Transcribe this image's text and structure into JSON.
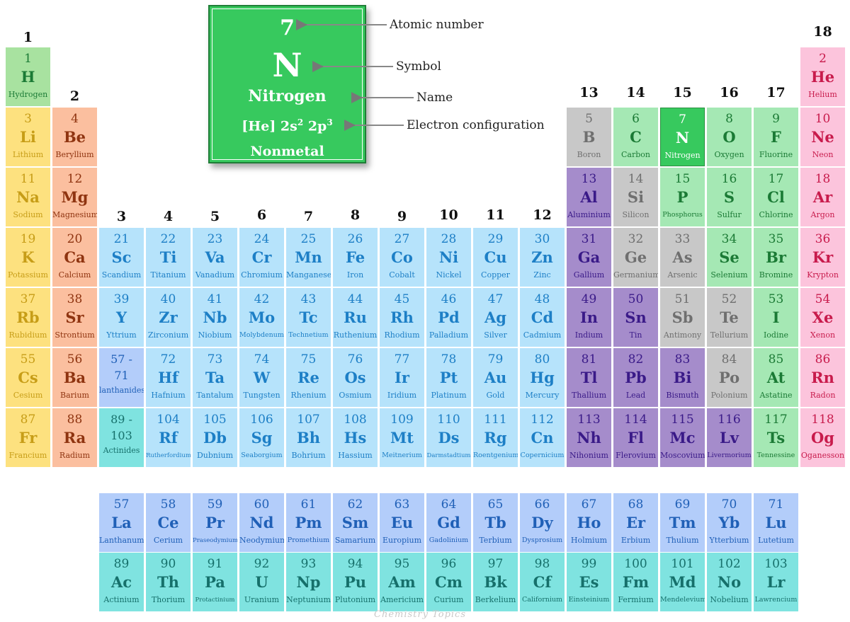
{
  "group_labels": [
    "1",
    "2",
    "3",
    "4",
    "5",
    "6",
    "7",
    "8",
    "9",
    "10",
    "11",
    "12",
    "13",
    "14",
    "15",
    "16",
    "17",
    "18"
  ],
  "legend": {
    "atomic_number": "7",
    "symbol": "N",
    "name": "Nitrogen",
    "config_prefix": "[He] 2s",
    "config_s": "2",
    "config_mid": " 2p",
    "config_p": "3",
    "category": "Nonmetal",
    "callouts": {
      "atomic_number": "Atomic number",
      "symbol": "Symbol",
      "name": "Name",
      "electron_configuration": "Electron configuration"
    }
  },
  "colors": {
    "alkali": {
      "bg": "#fde17f",
      "fg": "#c79d17"
    },
    "alkaline": {
      "bg": "#fbbf9f",
      "fg": "#8f3410"
    },
    "transition": {
      "bg": "#b6e3fb",
      "fg": "#1d7fc6"
    },
    "lanthanide": {
      "bg": "#b3cdfa",
      "fg": "#2060b7"
    },
    "actinide": {
      "bg": "#7fe3e0",
      "fg": "#16706b"
    },
    "post": {
      "bg": "#a58ccb",
      "fg": "#3a1a88"
    },
    "metalloid": {
      "bg": "#c8c8c8",
      "fg": "#6f6f6f"
    },
    "nonmetal": {
      "bg": "#a5e8b4",
      "fg": "#1b7a35"
    },
    "noble": {
      "bg": "#fcc4dc",
      "fg": "#c81b4c"
    },
    "highlight": {
      "bg": "#37c95e",
      "fg": "#ffffff"
    },
    "hydrogen": {
      "bg": "#a8e2a0",
      "fg": "#1b7a35"
    }
  },
  "elements": [
    {
      "n": "1",
      "s": "H",
      "name": "Hydrogen",
      "cat": "hydrogen",
      "row": 1,
      "col": 1
    },
    {
      "n": "2",
      "s": "He",
      "name": "Helium",
      "cat": "noble",
      "row": 1,
      "col": 18
    },
    {
      "n": "3",
      "s": "Li",
      "name": "Lithium",
      "cat": "alkali",
      "row": 2,
      "col": 1
    },
    {
      "n": "4",
      "s": "Be",
      "name": "Beryllium",
      "cat": "alkaline",
      "row": 2,
      "col": 2
    },
    {
      "n": "5",
      "s": "B",
      "name": "Boron",
      "cat": "metalloid",
      "row": 2,
      "col": 13
    },
    {
      "n": "6",
      "s": "C",
      "name": "Carbon",
      "cat": "nonmetal",
      "row": 2,
      "col": 14
    },
    {
      "n": "7",
      "s": "N",
      "name": "Nitrogen",
      "cat": "highlight",
      "row": 2,
      "col": 15
    },
    {
      "n": "8",
      "s": "O",
      "name": "Oxygen",
      "cat": "nonmetal",
      "row": 2,
      "col": 16
    },
    {
      "n": "9",
      "s": "F",
      "name": "Fluorine",
      "cat": "nonmetal",
      "row": 2,
      "col": 17
    },
    {
      "n": "10",
      "s": "Ne",
      "name": "Neon",
      "cat": "noble",
      "row": 2,
      "col": 18
    },
    {
      "n": "11",
      "s": "Na",
      "name": "Sodium",
      "cat": "alkali",
      "row": 3,
      "col": 1
    },
    {
      "n": "12",
      "s": "Mg",
      "name": "Magnesium",
      "cat": "alkaline",
      "row": 3,
      "col": 2
    },
    {
      "n": "13",
      "s": "Al",
      "name": "Aluminium",
      "cat": "post",
      "row": 3,
      "col": 13
    },
    {
      "n": "14",
      "s": "Si",
      "name": "Silicon",
      "cat": "metalloid",
      "row": 3,
      "col": 14
    },
    {
      "n": "15",
      "s": "P",
      "name": "Phosphorus",
      "cat": "nonmetal",
      "row": 3,
      "col": 15
    },
    {
      "n": "16",
      "s": "S",
      "name": "Sulfur",
      "cat": "nonmetal",
      "row": 3,
      "col": 16
    },
    {
      "n": "17",
      "s": "Cl",
      "name": "Chlorine",
      "cat": "nonmetal",
      "row": 3,
      "col": 17
    },
    {
      "n": "18",
      "s": "Ar",
      "name": "Argon",
      "cat": "noble",
      "row": 3,
      "col": 18
    },
    {
      "n": "19",
      "s": "K",
      "name": "Potassium",
      "cat": "alkali",
      "row": 4,
      "col": 1
    },
    {
      "n": "20",
      "s": "Ca",
      "name": "Calcium",
      "cat": "alkaline",
      "row": 4,
      "col": 2
    },
    {
      "n": "21",
      "s": "Sc",
      "name": "Scandium",
      "cat": "transition",
      "row": 4,
      "col": 3
    },
    {
      "n": "22",
      "s": "Ti",
      "name": "Titanium",
      "cat": "transition",
      "row": 4,
      "col": 4
    },
    {
      "n": "23",
      "s": "Va",
      "name": "Vanadium",
      "cat": "transition",
      "row": 4,
      "col": 5
    },
    {
      "n": "24",
      "s": "Cr",
      "name": "Chromium",
      "cat": "transition",
      "row": 4,
      "col": 6
    },
    {
      "n": "25",
      "s": "Mn",
      "name": "Manganese",
      "cat": "transition",
      "row": 4,
      "col": 7
    },
    {
      "n": "26",
      "s": "Fe",
      "name": "Iron",
      "cat": "transition",
      "row": 4,
      "col": 8
    },
    {
      "n": "27",
      "s": "Co",
      "name": "Cobalt",
      "cat": "transition",
      "row": 4,
      "col": 9
    },
    {
      "n": "28",
      "s": "Ni",
      "name": "Nickel",
      "cat": "transition",
      "row": 4,
      "col": 10
    },
    {
      "n": "29",
      "s": "Cu",
      "name": "Copper",
      "cat": "transition",
      "row": 4,
      "col": 11
    },
    {
      "n": "30",
      "s": "Zn",
      "name": "Zinc",
      "cat": "transition",
      "row": 4,
      "col": 12
    },
    {
      "n": "31",
      "s": "Ga",
      "name": "Gallium",
      "cat": "post",
      "row": 4,
      "col": 13
    },
    {
      "n": "32",
      "s": "Ge",
      "name": "Germanium",
      "cat": "metalloid",
      "row": 4,
      "col": 14
    },
    {
      "n": "33",
      "s": "As",
      "name": "Arsenic",
      "cat": "metalloid",
      "row": 4,
      "col": 15
    },
    {
      "n": "34",
      "s": "Se",
      "name": "Selenium",
      "cat": "nonmetal",
      "row": 4,
      "col": 16
    },
    {
      "n": "35",
      "s": "Br",
      "name": "Bromine",
      "cat": "nonmetal",
      "row": 4,
      "col": 17
    },
    {
      "n": "36",
      "s": "Kr",
      "name": "Krypton",
      "cat": "noble",
      "row": 4,
      "col": 18
    },
    {
      "n": "37",
      "s": "Rb",
      "name": "Rubidium",
      "cat": "alkali",
      "row": 5,
      "col": 1
    },
    {
      "n": "38",
      "s": "Sr",
      "name": "Strontium",
      "cat": "alkaline",
      "row": 5,
      "col": 2
    },
    {
      "n": "39",
      "s": "Y",
      "name": "Yttrium",
      "cat": "transition",
      "row": 5,
      "col": 3
    },
    {
      "n": "40",
      "s": "Zr",
      "name": "Zirconium",
      "cat": "transition",
      "row": 5,
      "col": 4
    },
    {
      "n": "41",
      "s": "Nb",
      "name": "Niobium",
      "cat": "transition",
      "row": 5,
      "col": 5
    },
    {
      "n": "42",
      "s": "Mo",
      "name": "Molybdenum",
      "cat": "transition",
      "row": 5,
      "col": 6
    },
    {
      "n": "43",
      "s": "Tc",
      "name": "Technetium",
      "cat": "transition",
      "row": 5,
      "col": 7
    },
    {
      "n": "44",
      "s": "Ru",
      "name": "Ruthenium",
      "cat": "transition",
      "row": 5,
      "col": 8
    },
    {
      "n": "45",
      "s": "Rh",
      "name": "Rhodium",
      "cat": "transition",
      "row": 5,
      "col": 9
    },
    {
      "n": "46",
      "s": "Pd",
      "name": "Palladium",
      "cat": "transition",
      "row": 5,
      "col": 10
    },
    {
      "n": "47",
      "s": "Ag",
      "name": "Silver",
      "cat": "transition",
      "row": 5,
      "col": 11
    },
    {
      "n": "48",
      "s": "Cd",
      "name": "Cadmium",
      "cat": "transition",
      "row": 5,
      "col": 12
    },
    {
      "n": "49",
      "s": "In",
      "name": "Indium",
      "cat": "post",
      "row": 5,
      "col": 13
    },
    {
      "n": "50",
      "s": "Sn",
      "name": "Tin",
      "cat": "post",
      "row": 5,
      "col": 14
    },
    {
      "n": "51",
      "s": "Sb",
      "name": "Antimony",
      "cat": "metalloid",
      "row": 5,
      "col": 15
    },
    {
      "n": "52",
      "s": "Te",
      "name": "Tellurium",
      "cat": "metalloid",
      "row": 5,
      "col": 16
    },
    {
      "n": "53",
      "s": "I",
      "name": "Iodine",
      "cat": "nonmetal",
      "row": 5,
      "col": 17
    },
    {
      "n": "54",
      "s": "Xe",
      "name": "Xenon",
      "cat": "noble",
      "row": 5,
      "col": 18
    },
    {
      "n": "55",
      "s": "Cs",
      "name": "Cesium",
      "cat": "alkali",
      "row": 6,
      "col": 1
    },
    {
      "n": "56",
      "s": "Ba",
      "name": "Barium",
      "cat": "alkaline",
      "row": 6,
      "col": 2
    },
    {
      "n": "57 -",
      "s": "71",
      "name": "lanthanides",
      "cat": "lanthanide",
      "row": 6,
      "col": 3,
      "placeholder": true
    },
    {
      "n": "72",
      "s": "Hf",
      "name": "Hafnium",
      "cat": "transition",
      "row": 6,
      "col": 4
    },
    {
      "n": "73",
      "s": "Ta",
      "name": "Tantalum",
      "cat": "transition",
      "row": 6,
      "col": 5
    },
    {
      "n": "74",
      "s": "W",
      "name": "Tungsten",
      "cat": "transition",
      "row": 6,
      "col": 6
    },
    {
      "n": "75",
      "s": "Re",
      "name": "Rhenium",
      "cat": "transition",
      "row": 6,
      "col": 7
    },
    {
      "n": "76",
      "s": "Os",
      "name": "Osmium",
      "cat": "transition",
      "row": 6,
      "col": 8
    },
    {
      "n": "77",
      "s": "Ir",
      "name": "Iridium",
      "cat": "transition",
      "row": 6,
      "col": 9
    },
    {
      "n": "78",
      "s": "Pt",
      "name": "Platinum",
      "cat": "transition",
      "row": 6,
      "col": 10
    },
    {
      "n": "79",
      "s": "Au",
      "name": "Gold",
      "cat": "transition",
      "row": 6,
      "col": 11
    },
    {
      "n": "80",
      "s": "Hg",
      "name": "Mercury",
      "cat": "transition",
      "row": 6,
      "col": 12
    },
    {
      "n": "81",
      "s": "Tl",
      "name": "Thallium",
      "cat": "post",
      "row": 6,
      "col": 13
    },
    {
      "n": "82",
      "s": "Pb",
      "name": "Lead",
      "cat": "post",
      "row": 6,
      "col": 14
    },
    {
      "n": "83",
      "s": "Bi",
      "name": "Bismuth",
      "cat": "post",
      "row": 6,
      "col": 15
    },
    {
      "n": "84",
      "s": "Po",
      "name": "Polonium",
      "cat": "metalloid",
      "row": 6,
      "col": 16
    },
    {
      "n": "85",
      "s": "At",
      "name": "Astatine",
      "cat": "nonmetal",
      "row": 6,
      "col": 17
    },
    {
      "n": "86",
      "s": "Rn",
      "name": "Radon",
      "cat": "noble",
      "row": 6,
      "col": 18
    },
    {
      "n": "87",
      "s": "Fr",
      "name": "Francium",
      "cat": "alkali",
      "row": 7,
      "col": 1
    },
    {
      "n": "88",
      "s": "Ra",
      "name": "Radium",
      "cat": "alkaline",
      "row": 7,
      "col": 2
    },
    {
      "n": "89 -",
      "s": "103",
      "name": "Actinides",
      "cat": "actinide",
      "row": 7,
      "col": 3,
      "placeholder": true
    },
    {
      "n": "104",
      "s": "Rf",
      "name": "Rutherfordium",
      "cat": "transition",
      "row": 7,
      "col": 4
    },
    {
      "n": "105",
      "s": "Db",
      "name": "Dubnium",
      "cat": "transition",
      "row": 7,
      "col": 5
    },
    {
      "n": "106",
      "s": "Sg",
      "name": "Seaborgium",
      "cat": "transition",
      "row": 7,
      "col": 6
    },
    {
      "n": "107",
      "s": "Bh",
      "name": "Bohrium",
      "cat": "transition",
      "row": 7,
      "col": 7
    },
    {
      "n": "108",
      "s": "Hs",
      "name": "Hassium",
      "cat": "transition",
      "row": 7,
      "col": 8
    },
    {
      "n": "109",
      "s": "Mt",
      "name": "Meitnerium",
      "cat": "transition",
      "row": 7,
      "col": 9
    },
    {
      "n": "110",
      "s": "Ds",
      "name": "Darmstadtium",
      "cat": "transition",
      "row": 7,
      "col": 10
    },
    {
      "n": "111",
      "s": "Rg",
      "name": "Roentgenium",
      "cat": "transition",
      "row": 7,
      "col": 11
    },
    {
      "n": "112",
      "s": "Cn",
      "name": "Copernicium",
      "cat": "transition",
      "row": 7,
      "col": 12
    },
    {
      "n": "113",
      "s": "Nh",
      "name": "Nihonium",
      "cat": "post",
      "row": 7,
      "col": 13
    },
    {
      "n": "114",
      "s": "Fl",
      "name": "Flerovium",
      "cat": "post",
      "row": 7,
      "col": 14
    },
    {
      "n": "115",
      "s": "Mc",
      "name": "Moscovium",
      "cat": "post",
      "row": 7,
      "col": 15
    },
    {
      "n": "116",
      "s": "Lv",
      "name": "Livermorium",
      "cat": "post",
      "row": 7,
      "col": 16
    },
    {
      "n": "117",
      "s": "Ts",
      "name": "Tennessine",
      "cat": "nonmetal",
      "row": 7,
      "col": 17
    },
    {
      "n": "118",
      "s": "Og",
      "name": "Oganesson",
      "cat": "noble",
      "row": 7,
      "col": 18
    },
    {
      "n": "57",
      "s": "La",
      "name": "Lanthanum",
      "cat": "lanthanide",
      "row": 9,
      "col": 3
    },
    {
      "n": "58",
      "s": "Ce",
      "name": "Cerium",
      "cat": "lanthanide",
      "row": 9,
      "col": 4
    },
    {
      "n": "59",
      "s": "Pr",
      "name": "Praseodymium",
      "cat": "lanthanide",
      "row": 9,
      "col": 5
    },
    {
      "n": "60",
      "s": "Nd",
      "name": "Neodymium",
      "cat": "lanthanide",
      "row": 9,
      "col": 6
    },
    {
      "n": "61",
      "s": "Pm",
      "name": "Promethium",
      "cat": "lanthanide",
      "row": 9,
      "col": 7
    },
    {
      "n": "62",
      "s": "Sm",
      "name": "Samarium",
      "cat": "lanthanide",
      "row": 9,
      "col": 8
    },
    {
      "n": "63",
      "s": "Eu",
      "name": "Europium",
      "cat": "lanthanide",
      "row": 9,
      "col": 9
    },
    {
      "n": "64",
      "s": "Gd",
      "name": "Gadolinium",
      "cat": "lanthanide",
      "row": 9,
      "col": 10
    },
    {
      "n": "65",
      "s": "Tb",
      "name": "Terbium",
      "cat": "lanthanide",
      "row": 9,
      "col": 11
    },
    {
      "n": "66",
      "s": "Dy",
      "name": "Dysprosium",
      "cat": "lanthanide",
      "row": 9,
      "col": 12
    },
    {
      "n": "67",
      "s": "Ho",
      "name": "Holmium",
      "cat": "lanthanide",
      "row": 9,
      "col": 13
    },
    {
      "n": "68",
      "s": "Er",
      "name": "Erbium",
      "cat": "lanthanide",
      "row": 9,
      "col": 14
    },
    {
      "n": "69",
      "s": "Tm",
      "name": "Thulium",
      "cat": "lanthanide",
      "row": 9,
      "col": 15
    },
    {
      "n": "70",
      "s": "Yb",
      "name": "Ytterbium",
      "cat": "lanthanide",
      "row": 9,
      "col": 16
    },
    {
      "n": "71",
      "s": "Lu",
      "name": "Lutetium",
      "cat": "lanthanide",
      "row": 9,
      "col": 17
    },
    {
      "n": "89",
      "s": "Ac",
      "name": "Actinium",
      "cat": "actinide",
      "row": 10,
      "col": 3
    },
    {
      "n": "90",
      "s": "Th",
      "name": "Thorium",
      "cat": "actinide",
      "row": 10,
      "col": 4
    },
    {
      "n": "91",
      "s": "Pa",
      "name": "Protactinium",
      "cat": "actinide",
      "row": 10,
      "col": 5
    },
    {
      "n": "92",
      "s": "U",
      "name": "Uranium",
      "cat": "actinide",
      "row": 10,
      "col": 6
    },
    {
      "n": "93",
      "s": "Np",
      "name": "Neptunium",
      "cat": "actinide",
      "row": 10,
      "col": 7
    },
    {
      "n": "94",
      "s": "Pu",
      "name": "Plutonium",
      "cat": "actinide",
      "row": 10,
      "col": 8
    },
    {
      "n": "95",
      "s": "Am",
      "name": "Americium",
      "cat": "actinide",
      "row": 10,
      "col": 9
    },
    {
      "n": "96",
      "s": "Cm",
      "name": "Curium",
      "cat": "actinide",
      "row": 10,
      "col": 10
    },
    {
      "n": "97",
      "s": "Bk",
      "name": "Berkelium",
      "cat": "actinide",
      "row": 10,
      "col": 11
    },
    {
      "n": "98",
      "s": "Cf",
      "name": "Californium",
      "cat": "actinide",
      "row": 10,
      "col": 12
    },
    {
      "n": "99",
      "s": "Es",
      "name": "Einsteinium",
      "cat": "actinide",
      "row": 10,
      "col": 13
    },
    {
      "n": "100",
      "s": "Fm",
      "name": "Fermium",
      "cat": "actinide",
      "row": 10,
      "col": 14
    },
    {
      "n": "101",
      "s": "Md",
      "name": "Mendelevium",
      "cat": "actinide",
      "row": 10,
      "col": 15
    },
    {
      "n": "102",
      "s": "No",
      "name": "Nobelium",
      "cat": "actinide",
      "row": 10,
      "col": 16
    },
    {
      "n": "103",
      "s": "Lr",
      "name": "Lawrencium",
      "cat": "actinide",
      "row": 10,
      "col": 17
    }
  ],
  "watermark": "Chemistry Topics"
}
